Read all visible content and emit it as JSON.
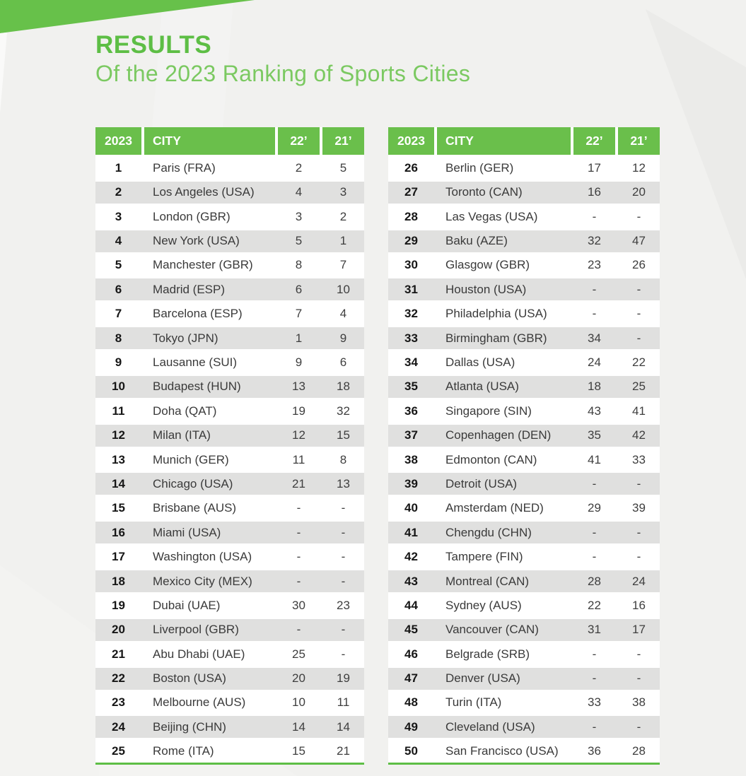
{
  "header": {
    "title": "RESULTS",
    "subtitle": "Of the 2023 Ranking of Sports Cities"
  },
  "colors": {
    "accent_green": "#6abf4b",
    "title_green": "#5dbe45",
    "subtitle_green": "#7bc961",
    "row_alt_gray": "#e0e0df",
    "page_background": "#f1f1ef",
    "row_white": "#ffffff",
    "header_text": "#ffffff",
    "body_text": "#3e3e3e"
  },
  "columns": [
    "2023",
    "CITY",
    "22’",
    "21’"
  ],
  "tables": [
    {
      "rows": [
        {
          "rank": "1",
          "city": "Paris (FRA)",
          "y22": "2",
          "y21": "5"
        },
        {
          "rank": "2",
          "city": "Los Angeles (USA)",
          "y22": "4",
          "y21": "3"
        },
        {
          "rank": "3",
          "city": "London (GBR)",
          "y22": "3",
          "y21": "2"
        },
        {
          "rank": "4",
          "city": "New York (USA)",
          "y22": "5",
          "y21": "1"
        },
        {
          "rank": "5",
          "city": "Manchester (GBR)",
          "y22": "8",
          "y21": "7"
        },
        {
          "rank": "6",
          "city": "Madrid (ESP)",
          "y22": "6",
          "y21": "10"
        },
        {
          "rank": "7",
          "city": "Barcelona (ESP)",
          "y22": "7",
          "y21": "4"
        },
        {
          "rank": "8",
          "city": "Tokyo (JPN)",
          "y22": "1",
          "y21": "9"
        },
        {
          "rank": "9",
          "city": "Lausanne (SUI)",
          "y22": "9",
          "y21": "6"
        },
        {
          "rank": "10",
          "city": "Budapest (HUN)",
          "y22": "13",
          "y21": "18"
        },
        {
          "rank": "11",
          "city": "Doha (QAT)",
          "y22": "19",
          "y21": "32"
        },
        {
          "rank": "12",
          "city": "Milan (ITA)",
          "y22": "12",
          "y21": "15"
        },
        {
          "rank": "13",
          "city": "Munich (GER)",
          "y22": "11",
          "y21": "8"
        },
        {
          "rank": "14",
          "city": "Chicago (USA)",
          "y22": "21",
          "y21": "13"
        },
        {
          "rank": "15",
          "city": "Brisbane (AUS)",
          "y22": "-",
          "y21": "-"
        },
        {
          "rank": "16",
          "city": "Miami (USA)",
          "y22": "-",
          "y21": "-"
        },
        {
          "rank": "17",
          "city": "Washington (USA)",
          "y22": "-",
          "y21": "-"
        },
        {
          "rank": "18",
          "city": "Mexico City (MEX)",
          "y22": "-",
          "y21": "-"
        },
        {
          "rank": "19",
          "city": "Dubai (UAE)",
          "y22": "30",
          "y21": "23"
        },
        {
          "rank": "20",
          "city": "Liverpool (GBR)",
          "y22": "-",
          "y21": "-"
        },
        {
          "rank": "21",
          "city": "Abu Dhabi (UAE)",
          "y22": "25",
          "y21": "-"
        },
        {
          "rank": "22",
          "city": "Boston (USA)",
          "y22": "20",
          "y21": "19"
        },
        {
          "rank": "23",
          "city": "Melbourne (AUS)",
          "y22": "10",
          "y21": "11"
        },
        {
          "rank": "24",
          "city": "Beijing (CHN)",
          "y22": "14",
          "y21": "14"
        },
        {
          "rank": "25",
          "city": "Rome (ITA)",
          "y22": "15",
          "y21": "21"
        }
      ]
    },
    {
      "rows": [
        {
          "rank": "26",
          "city": "Berlin (GER)",
          "y22": "17",
          "y21": "12"
        },
        {
          "rank": "27",
          "city": "Toronto (CAN)",
          "y22": "16",
          "y21": "20"
        },
        {
          "rank": "28",
          "city": "Las Vegas (USA)",
          "y22": "-",
          "y21": "-"
        },
        {
          "rank": "29",
          "city": "Baku (AZE)",
          "y22": "32",
          "y21": "47"
        },
        {
          "rank": "30",
          "city": "Glasgow (GBR)",
          "y22": "23",
          "y21": "26"
        },
        {
          "rank": "31",
          "city": "Houston (USA)",
          "y22": "-",
          "y21": "-"
        },
        {
          "rank": "32",
          "city": "Philadelphia (USA)",
          "y22": "-",
          "y21": "-"
        },
        {
          "rank": "33",
          "city": "Birmingham (GBR)",
          "y22": "34",
          "y21": "-"
        },
        {
          "rank": "34",
          "city": "Dallas (USA)",
          "y22": "24",
          "y21": "22"
        },
        {
          "rank": "35",
          "city": "Atlanta (USA)",
          "y22": "18",
          "y21": "25"
        },
        {
          "rank": "36",
          "city": "Singapore (SIN)",
          "y22": "43",
          "y21": "41"
        },
        {
          "rank": "37",
          "city": "Copenhagen (DEN)",
          "y22": "35",
          "y21": "42"
        },
        {
          "rank": "38",
          "city": "Edmonton (CAN)",
          "y22": "41",
          "y21": "33"
        },
        {
          "rank": "39",
          "city": "Detroit (USA)",
          "y22": "-",
          "y21": "-"
        },
        {
          "rank": "40",
          "city": "Amsterdam (NED)",
          "y22": "29",
          "y21": "39"
        },
        {
          "rank": "41",
          "city": "Chengdu (CHN)",
          "y22": "-",
          "y21": "-"
        },
        {
          "rank": "42",
          "city": "Tampere (FIN)",
          "y22": "-",
          "y21": "-"
        },
        {
          "rank": "43",
          "city": "Montreal (CAN)",
          "y22": "28",
          "y21": "24"
        },
        {
          "rank": "44",
          "city": "Sydney (AUS)",
          "y22": "22",
          "y21": "16"
        },
        {
          "rank": "45",
          "city": "Vancouver (CAN)",
          "y22": "31",
          "y21": "17"
        },
        {
          "rank": "46",
          "city": "Belgrade (SRB)",
          "y22": "-",
          "y21": "-"
        },
        {
          "rank": "47",
          "city": "Denver (USA)",
          "y22": "-",
          "y21": "-"
        },
        {
          "rank": "48",
          "city": "Turin (ITA)",
          "y22": "33",
          "y21": "38"
        },
        {
          "rank": "49",
          "city": "Cleveland (USA)",
          "y22": "-",
          "y21": "-"
        },
        {
          "rank": "50",
          "city": "San Francisco (USA)",
          "y22": "36",
          "y21": "28"
        }
      ]
    }
  ]
}
